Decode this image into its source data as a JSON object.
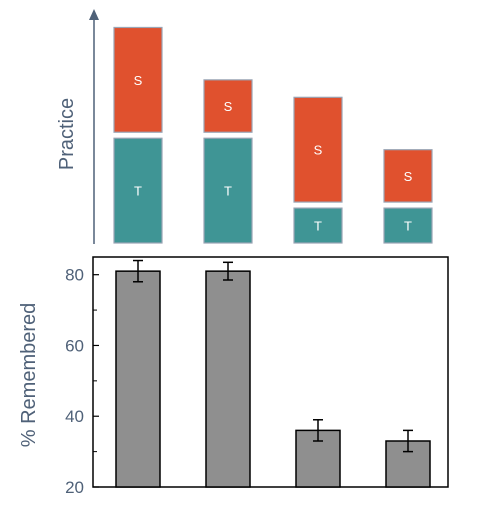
{
  "chart_data": [
    {
      "type": "bar",
      "stacked": true,
      "ylabel": "Practice",
      "axis_arrow": true,
      "series": [
        {
          "name": "T",
          "values": [
            3,
            3,
            1,
            1
          ],
          "color": "#3f9595"
        },
        {
          "name": "S",
          "values": [
            3,
            1.5,
            3,
            1.5
          ],
          "color": "#e0512e"
        }
      ],
      "ylim": [
        0,
        6.5
      ]
    },
    {
      "type": "bar",
      "ylabel": "% Remembered",
      "values": [
        81,
        81,
        36,
        33
      ],
      "errors": [
        3,
        2.5,
        3,
        3
      ],
      "ylim": [
        20,
        85
      ],
      "yticks": [
        20,
        40,
        60,
        80
      ],
      "bar_color": "#8f8f8f",
      "grid": false
    }
  ],
  "colors": {
    "axis_text": "#4f6178",
    "stack_border": "#9aa4b4"
  }
}
